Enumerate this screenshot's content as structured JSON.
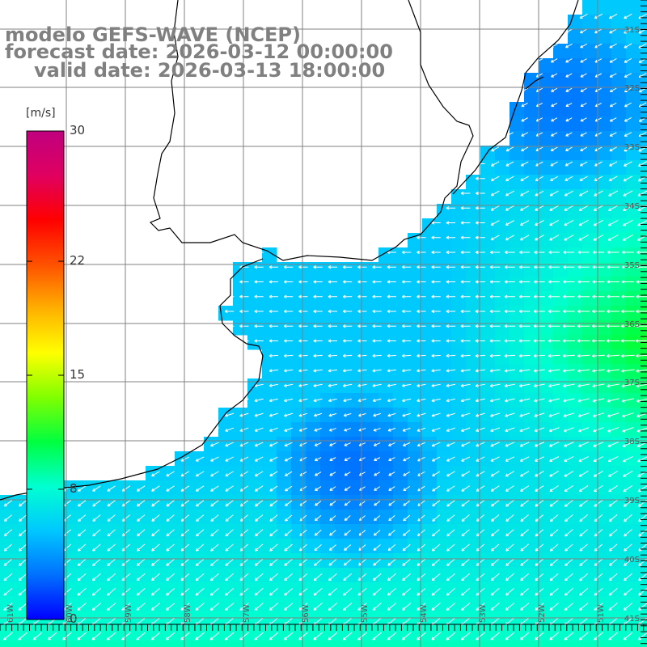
{
  "title": {
    "model": "modelo GEFS-WAVE (NCEP)",
    "forecast": "forecast date: 2026-03-12 00:00:00",
    "valid": "valid date: 2026-03-13 18:00:00"
  },
  "colorbar": {
    "unit": "[m/s]",
    "ticks": [
      {
        "label": "30",
        "value": 30
      },
      {
        "label": "22",
        "value": 22
      },
      {
        "label": "15",
        "value": 15
      },
      {
        "label": "8",
        "value": 8
      },
      {
        "label": "0",
        "value": 0
      }
    ],
    "colors": [
      "#0000ff",
      "#0070ff",
      "#00c8ff",
      "#00ffd0",
      "#00ff40",
      "#80ff00",
      "#ffff00",
      "#ffb000",
      "#ff5000",
      "#ff0000",
      "#e00060",
      "#c0007f"
    ]
  },
  "lat_labels": [
    "31S",
    "32S",
    "33S",
    "34S",
    "35S",
    "36S",
    "37S",
    "38S",
    "39S",
    "40S",
    "41S"
  ],
  "lon_labels": [
    "61W",
    "60W",
    "59W",
    "58W",
    "57W",
    "56W",
    "55W",
    "54W",
    "53W",
    "52W",
    "51W"
  ],
  "colors": {
    "land": "#ffffff",
    "grid": "#808080",
    "coast": "#000000",
    "arrow": "#ffffff",
    "title": "#808080"
  }
}
